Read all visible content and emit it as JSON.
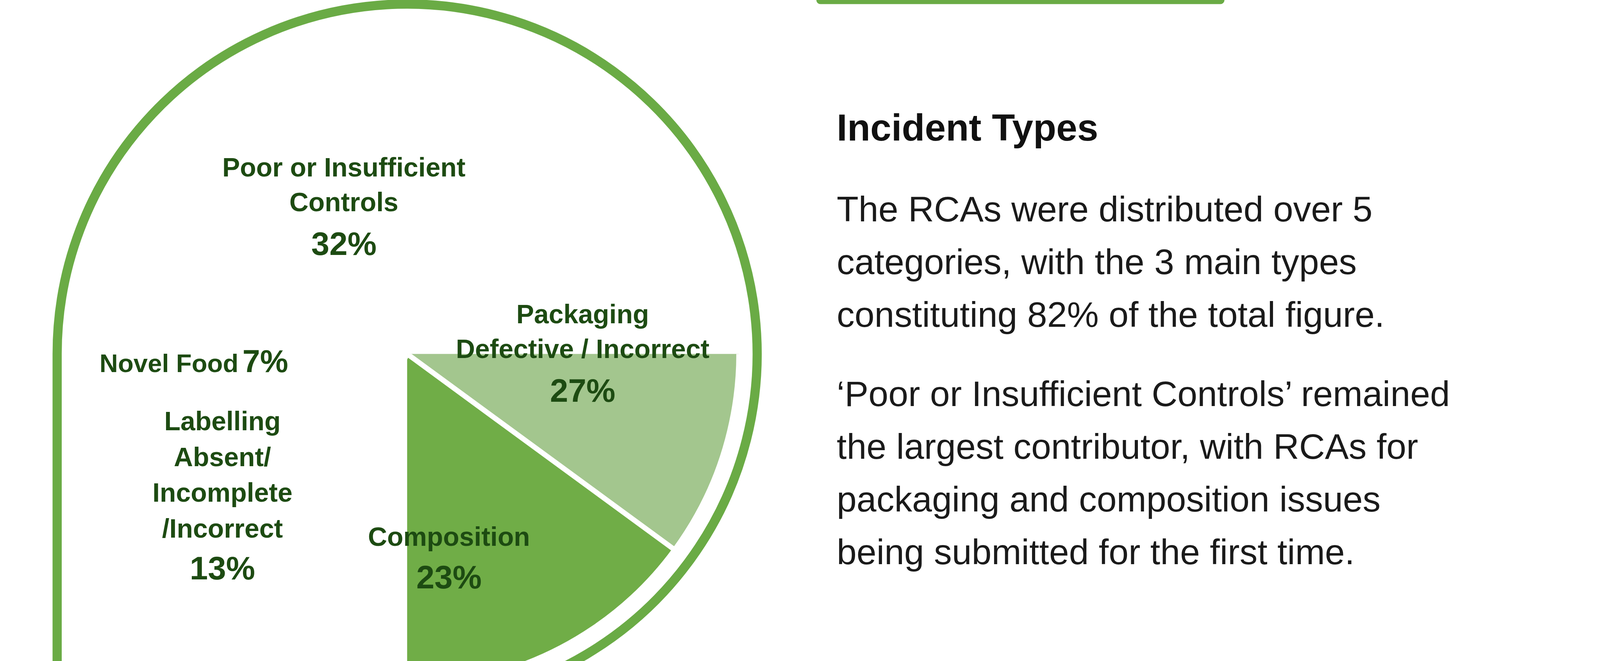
{
  "chart_data": {
    "type": "pie",
    "title": "Incident Types",
    "annotations": [
      [
        "The RCAs were distributed over 5",
        "categories, with the 3 main types",
        "constituting 82% of the total figure."
      ],
      [
        "‘Poor or Insufficient Controls’ remained",
        "the largest contributor, with RCAs for",
        "packaging and composition issues",
        "being submitted for the first time."
      ]
    ],
    "categories": [
      "Poor or Insufficient Controls",
      "Packaging Defective / Incorrect",
      "Composition",
      "Labelling Absent/ Incomplete /Incorrect",
      "Novel Food"
    ],
    "values": [
      32,
      27,
      23,
      13,
      7
    ],
    "value_labels": [
      "32%",
      "27%",
      "23%",
      "13%",
      "7%"
    ],
    "colors": [
      "#c5dbbc",
      "#a3c68e",
      "#70ad47",
      "#5f9b3a",
      "#4e7f33"
    ],
    "data_labels": true
  }
}
